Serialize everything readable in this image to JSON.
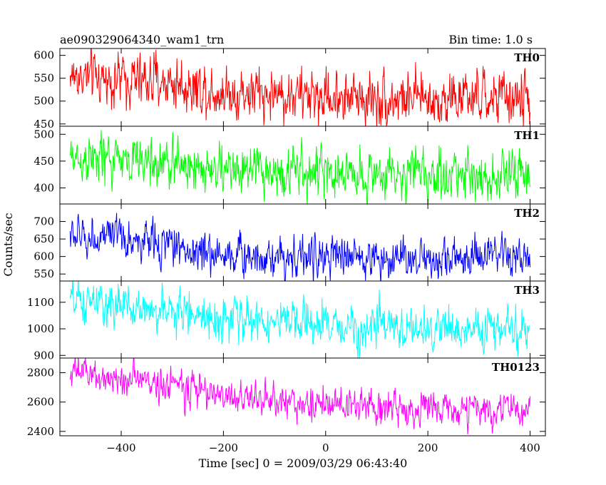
{
  "chart_data": {
    "type": "line",
    "title": "ae090329064340_wam1_trn",
    "subtitle": "Bin time: 1.0 s",
    "xlabel": "Time [sec] 0 = 2009/03/29 06:43:40",
    "ylabel": "Counts/sec",
    "xlim": [
      -520,
      430
    ],
    "x_ticks": [
      -400,
      -200,
      0,
      200,
      400
    ],
    "x_range": [
      -500,
      400
    ],
    "grid": false,
    "panels": [
      {
        "name": "TH0",
        "color": "#ff0000",
        "ylim": [
          445,
          615
        ],
        "y_ticks": [
          450,
          500,
          550,
          600
        ],
        "trend": [
          [
            -500,
            555
          ],
          [
            -300,
            540
          ],
          [
            -200,
            520
          ],
          [
            0,
            510
          ],
          [
            200,
            505
          ],
          [
            400,
            505
          ]
        ],
        "noise": 28
      },
      {
        "name": "TH1",
        "color": "#00ff00",
        "ylim": [
          370,
          515
        ],
        "y_ticks": [
          400,
          450,
          500
        ],
        "trend": [
          [
            -500,
            455
          ],
          [
            -300,
            445
          ],
          [
            -200,
            432
          ],
          [
            0,
            428
          ],
          [
            200,
            425
          ],
          [
            400,
            422
          ]
        ],
        "noise": 22
      },
      {
        "name": "TH2",
        "color": "#0000ff",
        "ylim": [
          530,
          750
        ],
        "y_ticks": [
          550,
          600,
          650,
          700
        ],
        "trend": [
          [
            -500,
            660
          ],
          [
            -300,
            635
          ],
          [
            -250,
            610
          ],
          [
            0,
            597
          ],
          [
            200,
            595
          ],
          [
            400,
            595
          ]
        ],
        "noise": 28
      },
      {
        "name": "TH3",
        "color": "#00ffff",
        "ylim": [
          890,
          1180
        ],
        "y_ticks": [
          900,
          1000,
          1100
        ],
        "trend": [
          [
            -500,
            1100
          ],
          [
            -300,
            1065
          ],
          [
            -200,
            1040
          ],
          [
            0,
            1010
          ],
          [
            200,
            1000
          ],
          [
            400,
            995
          ]
        ],
        "noise": 38
      },
      {
        "name": "TH0123",
        "color": "#ff00ff",
        "ylim": [
          2370,
          2900
        ],
        "y_ticks": [
          2400,
          2600,
          2800
        ],
        "trend": [
          [
            -500,
            2800
          ],
          [
            -300,
            2720
          ],
          [
            -200,
            2640
          ],
          [
            0,
            2580
          ],
          [
            200,
            2555
          ],
          [
            400,
            2540
          ]
        ],
        "noise": 55
      }
    ]
  }
}
